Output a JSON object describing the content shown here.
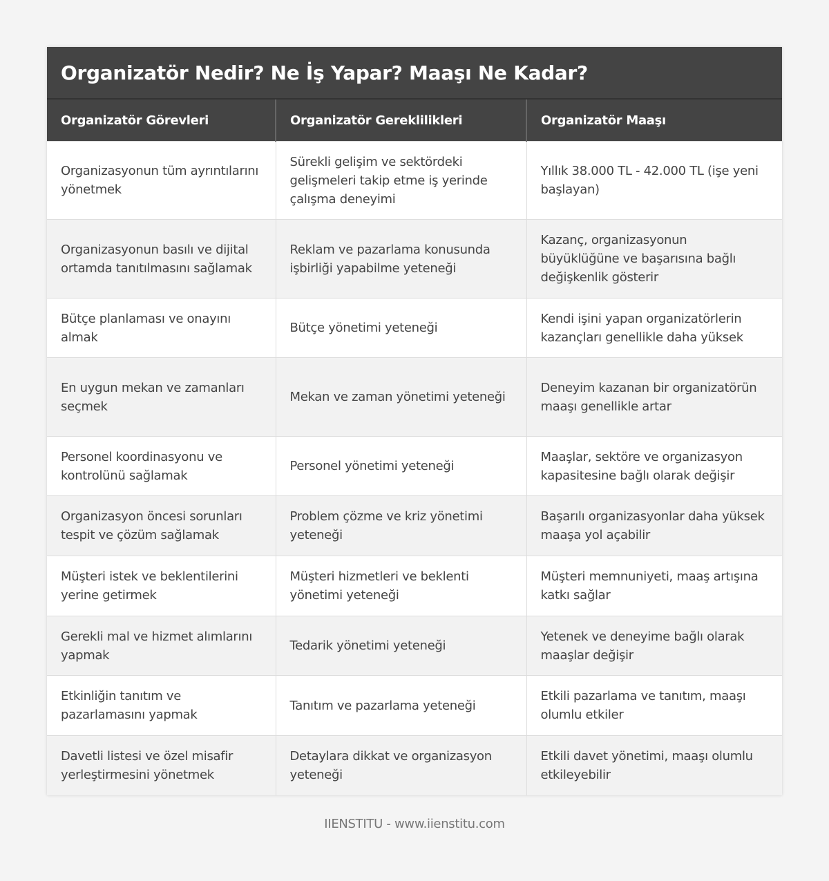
{
  "title": "Organizatör Nedir? Ne İş Yapar? Maaşı Ne Kadar?",
  "columns": [
    "Organizatör Görevleri",
    "Organizatör Gereklilikleri",
    "Organizatör Maaşı"
  ],
  "rows": [
    [
      "Organizasyonun tüm ayrıntılarını yönetmek",
      "Sürekli gelişim ve sektördeki gelişmeleri takip etme iş yerinde çalışma deneyimi",
      "Yıllık 38.000 TL - 42.000 TL (işe yeni başlayan)"
    ],
    [
      "Organizasyonun basılı ve dijital ortamda tanıtılmasını sağlamak",
      "Reklam ve pazarlama konusunda işbirliği yapabilme yeteneği",
      "Kazanç, organizasyonun büyüklüğüne ve başarısına bağlı değişkenlik gösterir"
    ],
    [
      "Bütçe planlaması ve onayını almak",
      "Bütçe yönetimi yeteneği",
      "Kendi işini yapan organizatörlerin kazançları genellikle daha yüksek"
    ],
    [
      "En uygun mekan ve zamanları seçmek",
      "Mekan ve zaman yönetimi yeteneği",
      "Deneyim kazanan bir organizatörün maaşı genellikle artar"
    ],
    [
      "Personel koordinasyonu ve kontrolünü sağlamak",
      "Personel yönetimi yeteneği",
      "Maaşlar, sektöre ve organizasyon kapasitesine bağlı olarak değişir"
    ],
    [
      "Organizasyon öncesi sorunları tespit ve çözüm sağlamak",
      "Problem çözme ve kriz yönetimi yeteneği",
      "Başarılı organizasyonlar daha yüksek maaşa yol açabilir"
    ],
    [
      "Müşteri istek ve beklentilerini yerine getirmek",
      "Müşteri hizmetleri ve beklenti yönetimi yeteneği",
      "Müşteri memnuniyeti, maaş artışına katkı sağlar"
    ],
    [
      "Gerekli mal ve hizmet alımlarını yapmak",
      "Tedarik yönetimi yeteneği",
      "Yetenek ve deneyime bağlı olarak maaşlar değişir"
    ],
    [
      "Etkinliğin tanıtım ve pazarlamasını yapmak",
      "Tanıtım ve pazarlama yeteneği",
      "Etkili pazarlama ve tanıtım, maaşı olumlu etkiler"
    ],
    [
      "Davetli listesi ve özel misafir yerleştirmesini yönetmek",
      "Detaylara dikkat ve organizasyon yeteneği",
      "Etkili davet yönetimi, maaşı olumlu etkileyebilir"
    ]
  ],
  "footer": "IIENSTITU - www.iienstitu.com"
}
